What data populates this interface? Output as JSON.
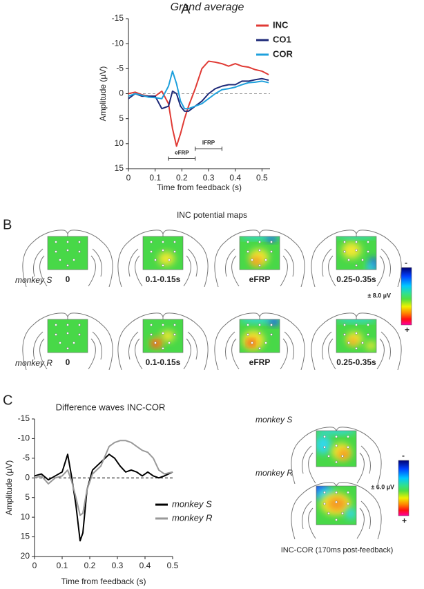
{
  "chart_data": [
    {
      "type": "line",
      "panel_label": "A",
      "title": "Grand average",
      "x_label": "Time from feedback (s)",
      "y_label": "Amplitude (µV)",
      "x": [
        0,
        0.025,
        0.05,
        0.075,
        0.1,
        0.125,
        0.15,
        0.165,
        0.18,
        0.195,
        0.21,
        0.225,
        0.25,
        0.275,
        0.3,
        0.325,
        0.35,
        0.375,
        0.4,
        0.425,
        0.45,
        0.475,
        0.5,
        0.525
      ],
      "series": [
        {
          "name": "INC",
          "color": "#e03a34",
          "values": [
            0,
            -0.3,
            0.2,
            0.5,
            0.5,
            -0.5,
            2,
            7,
            10.5,
            8,
            5,
            2.5,
            -1,
            -5,
            -6.5,
            -6.3,
            -6,
            -5.5,
            -6,
            -5.5,
            -5.3,
            -4.8,
            -4.5,
            -3.8
          ]
        },
        {
          "name": "CO1",
          "color": "#1e2a78",
          "values": [
            1,
            0,
            0.5,
            0.5,
            0.5,
            3,
            2.5,
            -0.5,
            0,
            2.5,
            3.5,
            3.5,
            2.5,
            1.5,
            0,
            -1,
            -1.5,
            -1.8,
            -1.8,
            -2.5,
            -2.5,
            -2.8,
            -3,
            -2.7
          ]
        },
        {
          "name": "COR",
          "color": "#1ea0dc",
          "values": [
            0.5,
            0,
            0.3,
            0.7,
            0.8,
            1,
            -1.5,
            -4.5,
            -2,
            1.5,
            3,
            3,
            2.5,
            2,
            1,
            0,
            -0.8,
            -1,
            -1.3,
            -1.8,
            -2.2,
            -2.3,
            -2.5,
            -2.2
          ]
        }
      ],
      "xlim": [
        0,
        0.53
      ],
      "xticks": [
        0,
        0.1,
        0.2,
        0.3,
        0.4,
        0.5
      ],
      "ylim": [
        -15,
        15
      ],
      "yticks": [
        -15,
        -10,
        -5,
        0,
        5,
        10,
        15
      ],
      "y_inverted": true,
      "zero_line": true,
      "zero_line_color": "#999999",
      "legend": "upper right",
      "legend_bold": true,
      "annotations": [
        {
          "text": "eFRP",
          "x": [
            0.15,
            0.25
          ],
          "y": 13
        },
        {
          "text": "lFRP",
          "x": [
            0.25,
            0.35
          ],
          "y": 11
        }
      ]
    },
    {
      "type": "line",
      "panel_label": "C",
      "title": "Difference waves INC-COR",
      "x_label": "Time from feedback (s)",
      "y_label": "Amplitude (µV)",
      "x": [
        0,
        0.025,
        0.05,
        0.075,
        0.1,
        0.12,
        0.135,
        0.15,
        0.165,
        0.175,
        0.19,
        0.21,
        0.24,
        0.27,
        0.29,
        0.31,
        0.33,
        0.35,
        0.37,
        0.39,
        0.41,
        0.43,
        0.45,
        0.47,
        0.5
      ],
      "series": [
        {
          "name": "monkey S",
          "color": "#000000",
          "values": [
            -0.5,
            -1,
            0.5,
            -0.5,
            -1.5,
            -6,
            0,
            7,
            16,
            14,
            3,
            -2,
            -4,
            -6,
            -5,
            -3,
            -1.5,
            -2,
            -1.5,
            -0.5,
            -1.5,
            -0.5,
            0,
            -0.5,
            -1.5
          ]
        },
        {
          "name": "monkey R",
          "color": "#999999",
          "values": [
            0,
            -0.5,
            1.5,
            0,
            -0.5,
            -2,
            1,
            5,
            9.5,
            9,
            3,
            -1,
            -3,
            -8,
            -9,
            -9.5,
            -9.5,
            -9,
            -8,
            -7,
            -6.5,
            -5,
            -2,
            -1,
            -1.5
          ]
        }
      ],
      "xlim": [
        0,
        0.5
      ],
      "xticks": [
        0,
        0.1,
        0.2,
        0.3,
        0.4,
        0.5
      ],
      "ylim": [
        -15,
        20
      ],
      "yticks": [
        -15,
        -10,
        -5,
        0,
        5,
        10,
        15,
        20
      ],
      "y_inverted": true,
      "zero_line": true,
      "zero_line_color": "#000000",
      "legend": "lower right",
      "legend_italic": true,
      "legend_text_colored": true
    }
  ],
  "panel_b": {
    "label": "B",
    "title": "INC potential maps",
    "map_labels": [
      "0",
      "0.1-0.15s",
      "eFRP",
      "0.25-0.35s"
    ],
    "rows": [
      "monkey S",
      "monkey R"
    ],
    "colorbar": {
      "top": "-",
      "scale": "± 8.0 µV",
      "bottom": "+"
    }
  },
  "panel_c_maps": {
    "rows": [
      "monkey S",
      "monkey R"
    ],
    "colorbar": {
      "top": "-",
      "scale": "± 6.0 µV",
      "bottom": "+"
    },
    "caption": "INC-COR (170ms post-feedback)"
  }
}
